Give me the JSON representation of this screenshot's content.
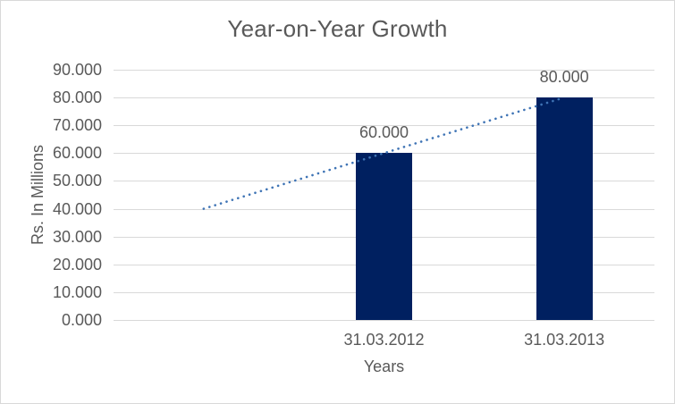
{
  "chart_data": {
    "type": "bar",
    "title": "Year-on-Year Growth",
    "xlabel": "Years",
    "ylabel": "Rs. In Millions",
    "categories": [
      "",
      "31.03.2012",
      "31.03.2013"
    ],
    "values": [
      null,
      60000,
      80000
    ],
    "data_labels": [
      "",
      "60.000",
      "80.000"
    ],
    "y_tick_labels": [
      "0.000",
      "10.000",
      "20.000",
      "30.000",
      "40.000",
      "50.000",
      "60.000",
      "70.000",
      "80.000",
      "90.000"
    ],
    "y_tick_step": 10000,
    "ylim": [
      0,
      90000
    ],
    "grid": true,
    "legend": "none",
    "trendline": {
      "style": "dotted",
      "start": {
        "category_index": 0,
        "value": 40000
      },
      "end": {
        "category_index": 2,
        "value": 80000
      }
    },
    "colors": {
      "bar": "#002060",
      "trendline": "#3F74B5",
      "gridline": "#D9D9D9",
      "text": "#595959",
      "border": "#D9D9D9",
      "background": "#FFFFFF"
    }
  }
}
